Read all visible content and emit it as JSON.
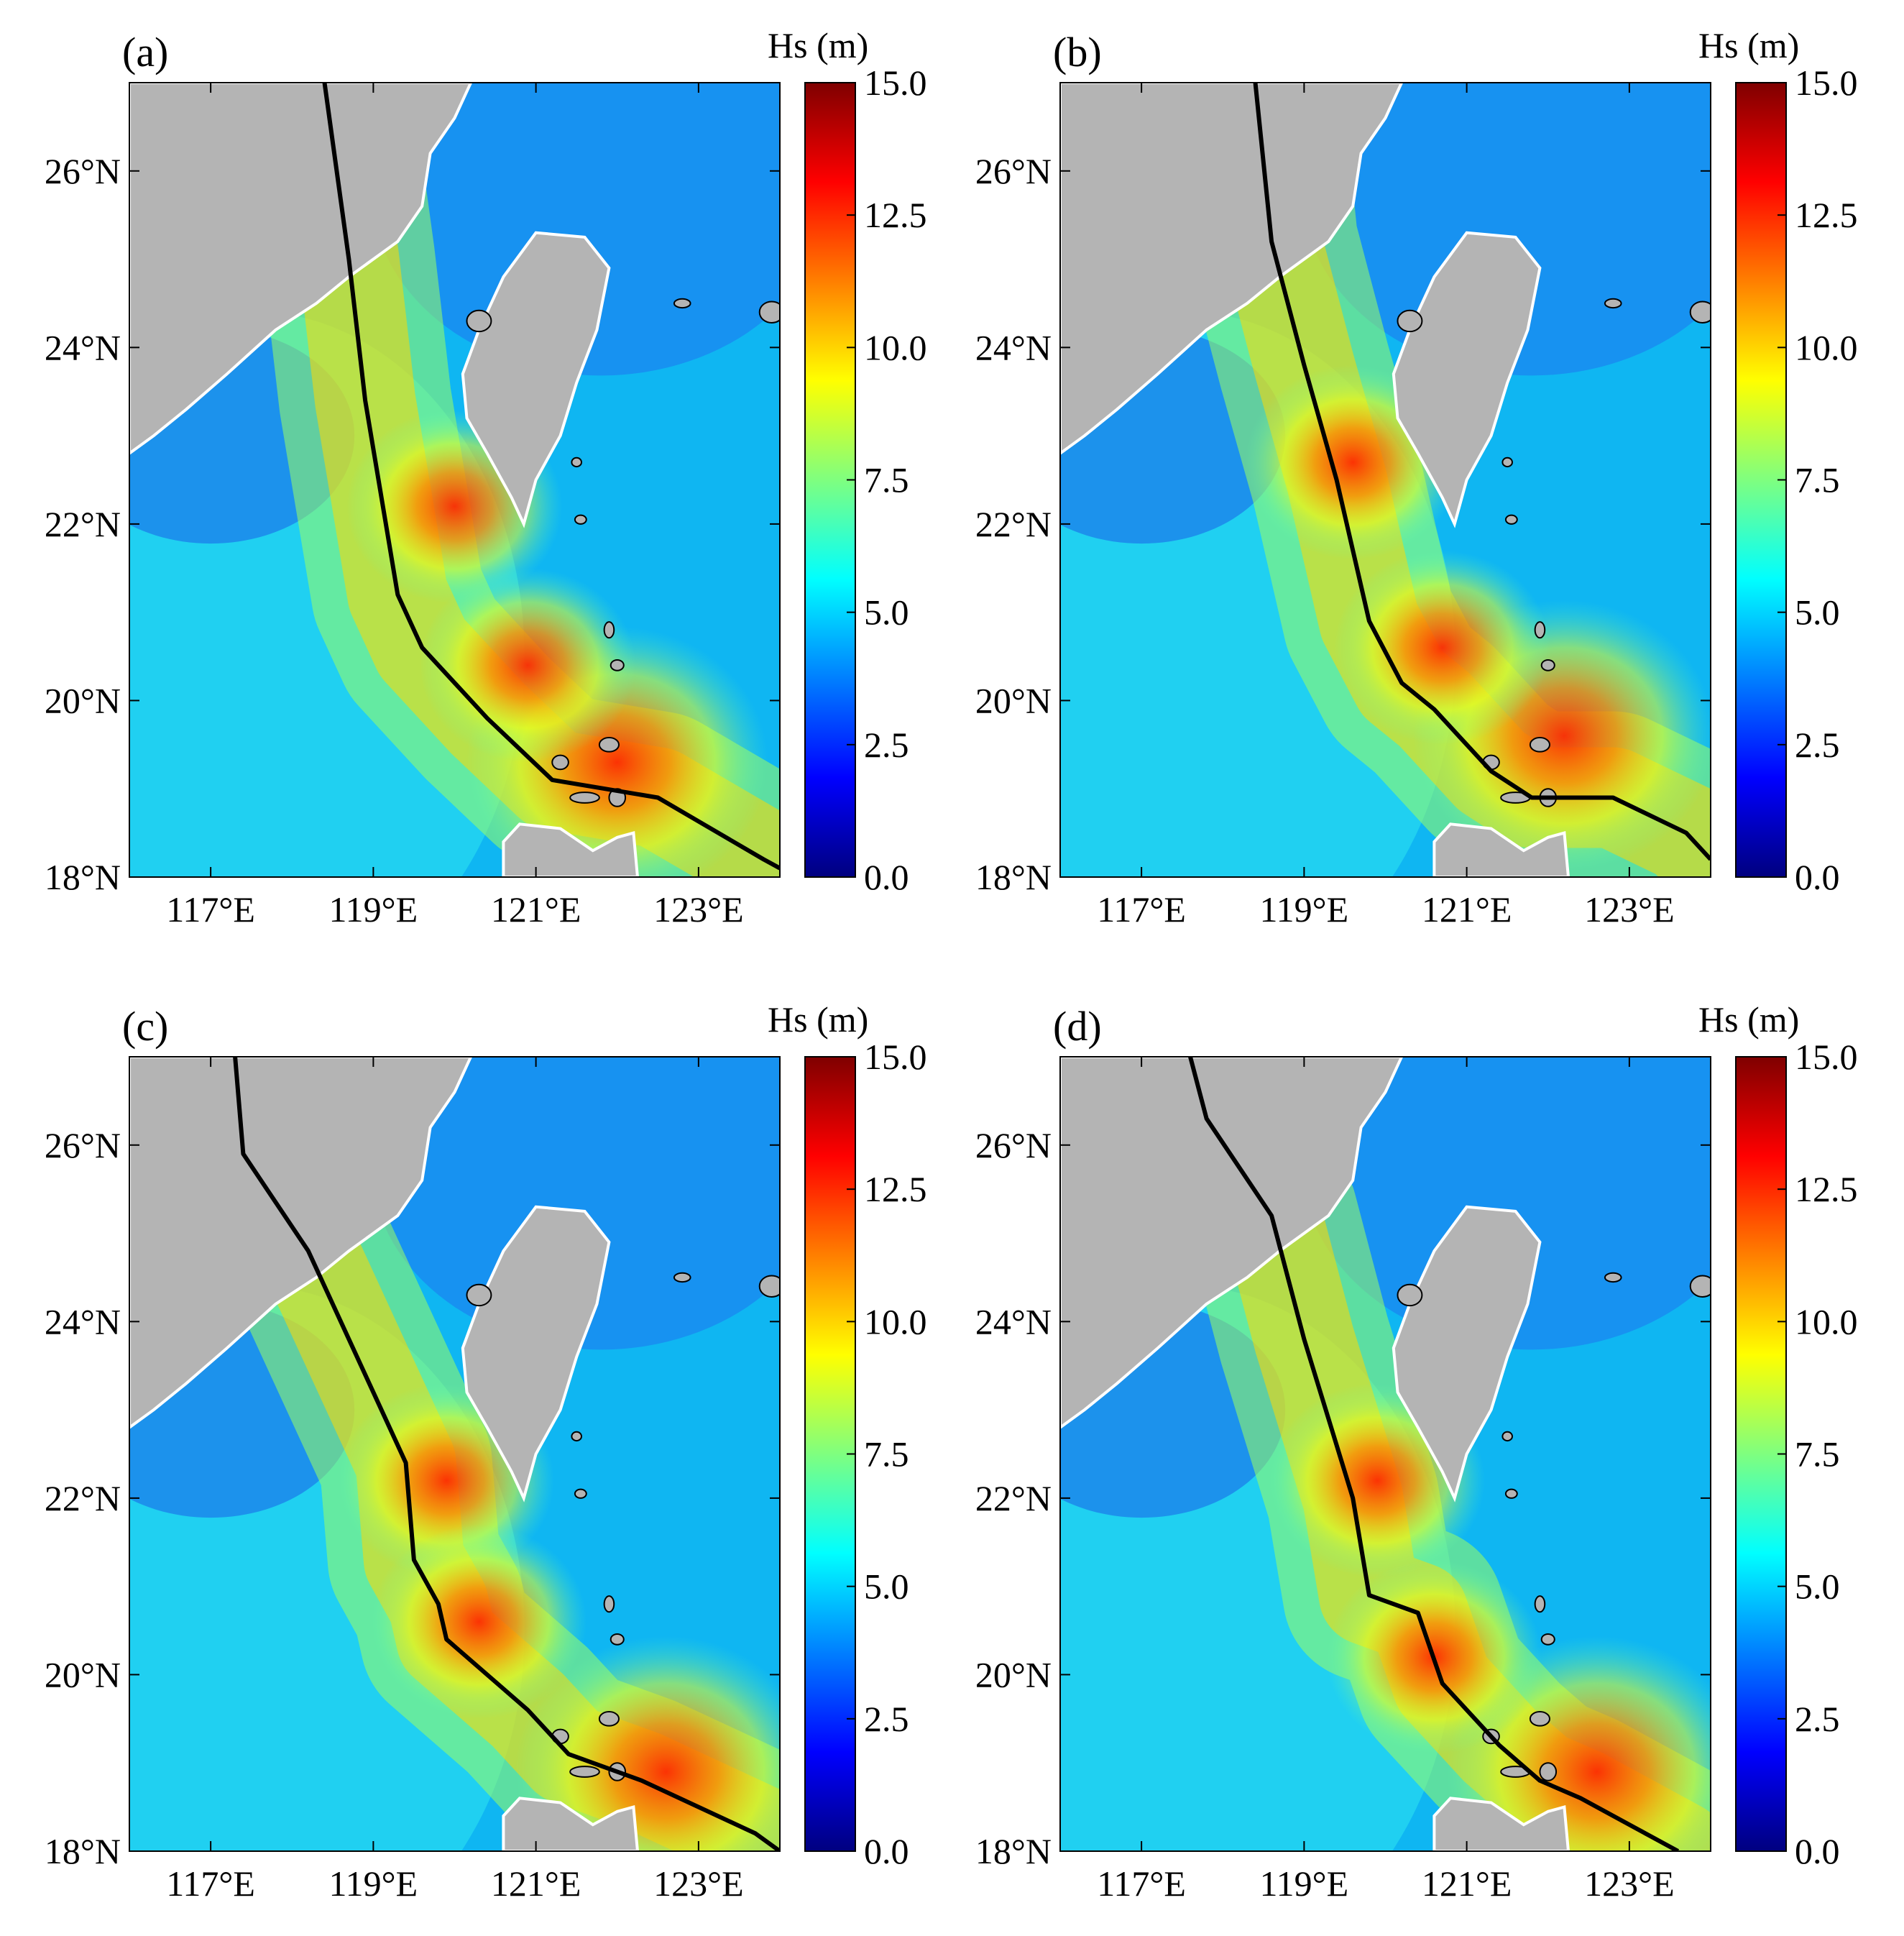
{
  "colors": {
    "land": "#b4b4b4",
    "coast": "#ffffff",
    "track": "#000000",
    "colormap": [
      "#00007f",
      "#0000ff",
      "#007fff",
      "#00ffff",
      "#7fff7f",
      "#ffff00",
      "#ff7f00",
      "#ff0000",
      "#7f0000"
    ]
  },
  "colorbar": {
    "title": "Hs (m)",
    "ticks": [
      "15.0",
      "12.5",
      "10.0",
      "7.5",
      "5.0",
      "2.5",
      "0.0"
    ],
    "range": [
      0,
      15
    ]
  },
  "axes": {
    "lon_range": [
      116.0,
      124.0
    ],
    "lat_range": [
      18.0,
      27.0
    ],
    "lon_ticks": [
      {
        "value": 117,
        "label": "117°E"
      },
      {
        "value": 119,
        "label": "119°E"
      },
      {
        "value": 121,
        "label": "121°E"
      },
      {
        "value": 123,
        "label": "123°E"
      }
    ],
    "lat_ticks": [
      {
        "value": 26,
        "label": "26°N"
      },
      {
        "value": 24,
        "label": "24°N"
      },
      {
        "value": 22,
        "label": "22°N"
      },
      {
        "value": 20,
        "label": "20°N"
      },
      {
        "value": 18,
        "label": "18°N"
      }
    ]
  },
  "panels": [
    {
      "label": "(a)",
      "track": [
        [
          118.4,
          27.0
        ],
        [
          118.7,
          25.0
        ],
        [
          118.9,
          23.4
        ],
        [
          119.3,
          21.2
        ],
        [
          119.6,
          20.6
        ],
        [
          120.4,
          19.8
        ],
        [
          121.2,
          19.1
        ],
        [
          122.5,
          18.9
        ],
        [
          123.8,
          18.2
        ],
        [
          124.0,
          18.1
        ]
      ],
      "wave_peaks": [
        [
          122.0,
          19.3
        ],
        [
          120.0,
          22.2
        ],
        [
          120.9,
          20.4
        ]
      ]
    },
    {
      "label": "(b)",
      "track": [
        [
          118.4,
          27.0
        ],
        [
          118.6,
          25.2
        ],
        [
          119.0,
          23.8
        ],
        [
          119.4,
          22.5
        ],
        [
          119.8,
          20.9
        ],
        [
          120.2,
          20.2
        ],
        [
          120.6,
          19.9
        ],
        [
          121.3,
          19.2
        ],
        [
          121.8,
          18.9
        ],
        [
          122.8,
          18.9
        ],
        [
          123.7,
          18.5
        ],
        [
          124.0,
          18.2
        ]
      ],
      "wave_peaks": [
        [
          122.2,
          19.6
        ],
        [
          119.6,
          22.7
        ],
        [
          120.7,
          20.6
        ]
      ]
    },
    {
      "label": "(c)",
      "track": [
        [
          117.3,
          27.0
        ],
        [
          117.4,
          25.9
        ],
        [
          118.2,
          24.8
        ],
        [
          118.8,
          23.6
        ],
        [
          119.4,
          22.4
        ],
        [
          119.5,
          21.3
        ],
        [
          119.8,
          20.8
        ],
        [
          119.9,
          20.4
        ],
        [
          120.9,
          19.6
        ],
        [
          121.4,
          19.1
        ],
        [
          122.3,
          18.8
        ],
        [
          123.7,
          18.2
        ],
        [
          124.0,
          18.0
        ]
      ],
      "wave_peaks": [
        [
          122.6,
          18.9
        ],
        [
          119.9,
          22.2
        ],
        [
          120.3,
          20.6
        ]
      ]
    },
    {
      "label": "(d)",
      "track": [
        [
          117.6,
          27.0
        ],
        [
          117.8,
          26.3
        ],
        [
          118.6,
          25.2
        ],
        [
          119.0,
          23.8
        ],
        [
          119.3,
          22.9
        ],
        [
          119.6,
          22.0
        ],
        [
          119.8,
          20.9
        ],
        [
          120.4,
          20.7
        ],
        [
          120.7,
          19.9
        ],
        [
          121.4,
          19.2
        ],
        [
          121.9,
          18.8
        ],
        [
          122.4,
          18.6
        ],
        [
          123.6,
          18.0
        ]
      ],
      "wave_peaks": [
        [
          122.6,
          18.9
        ],
        [
          119.9,
          22.2
        ],
        [
          120.6,
          20.2
        ]
      ]
    }
  ]
}
